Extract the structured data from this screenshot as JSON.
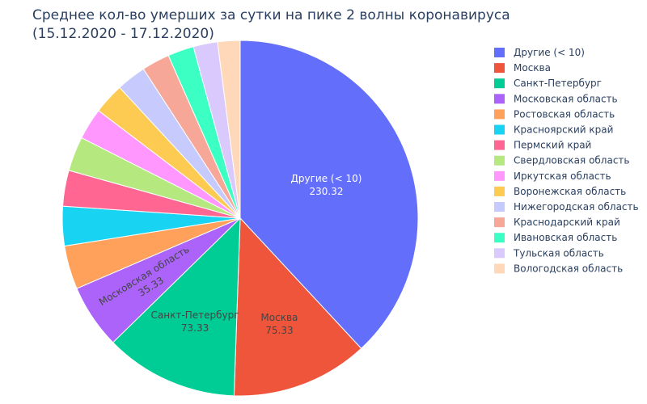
{
  "chart_data": {
    "type": "pie",
    "title": "Среднее кол-во умерших за сутки на пике 2 волны коронавируса",
    "subtitle": "(15.12.2020 - 17.12.2020)",
    "legend_placement": "right",
    "slices": [
      {
        "label": "Другие (< 10)",
        "value": 230.32,
        "color": "#636efa",
        "text_color": "#ffffff",
        "show_label": true
      },
      {
        "label": "Москва",
        "value": 75.33,
        "color": "#ef553b",
        "text_color": "#444444",
        "show_label": true
      },
      {
        "label": "Санкт-Петербург",
        "value": 73.33,
        "color": "#00cc96",
        "text_color": "#444444",
        "show_label": true
      },
      {
        "label": "Московская область",
        "value": 35.33,
        "color": "#ab63fa",
        "text_color": "#444444",
        "show_label": true
      },
      {
        "label": "Ростовская область",
        "value": 24.0,
        "color": "#ffa15a",
        "text_color": "#444444",
        "show_label": false
      },
      {
        "label": "Красноярский край",
        "value": 21.67,
        "color": "#19d3f3",
        "text_color": "#444444",
        "show_label": false
      },
      {
        "label": "Пермский край",
        "value": 19.67,
        "color": "#ff6692",
        "text_color": "#444444",
        "show_label": false
      },
      {
        "label": "Свердловская область",
        "value": 19.0,
        "color": "#b6e880",
        "text_color": "#444444",
        "show_label": false
      },
      {
        "label": "Иркутская область",
        "value": 17.33,
        "color": "#ff97ff",
        "text_color": "#444444",
        "show_label": false
      },
      {
        "label": "Воронежская область",
        "value": 17.0,
        "color": "#fecb52",
        "text_color": "#444444",
        "show_label": false
      },
      {
        "label": "Нижегородская область",
        "value": 16.33,
        "color": "#c6cafd",
        "text_color": "#444444",
        "show_label": false
      },
      {
        "label": "Краснодарский край",
        "value": 15.33,
        "color": "#f7a797",
        "text_color": "#444444",
        "show_label": false
      },
      {
        "label": "Ивановская область",
        "value": 14.33,
        "color": "#3cffc4",
        "text_color": "#444444",
        "show_label": false
      },
      {
        "label": "Тульская область",
        "value": 13.33,
        "color": "#dac9fc",
        "text_color": "#444444",
        "show_label": false
      },
      {
        "label": "Вологодская область",
        "value": 12.33,
        "color": "#fed8b8",
        "text_color": "#444444",
        "show_label": false
      }
    ]
  }
}
